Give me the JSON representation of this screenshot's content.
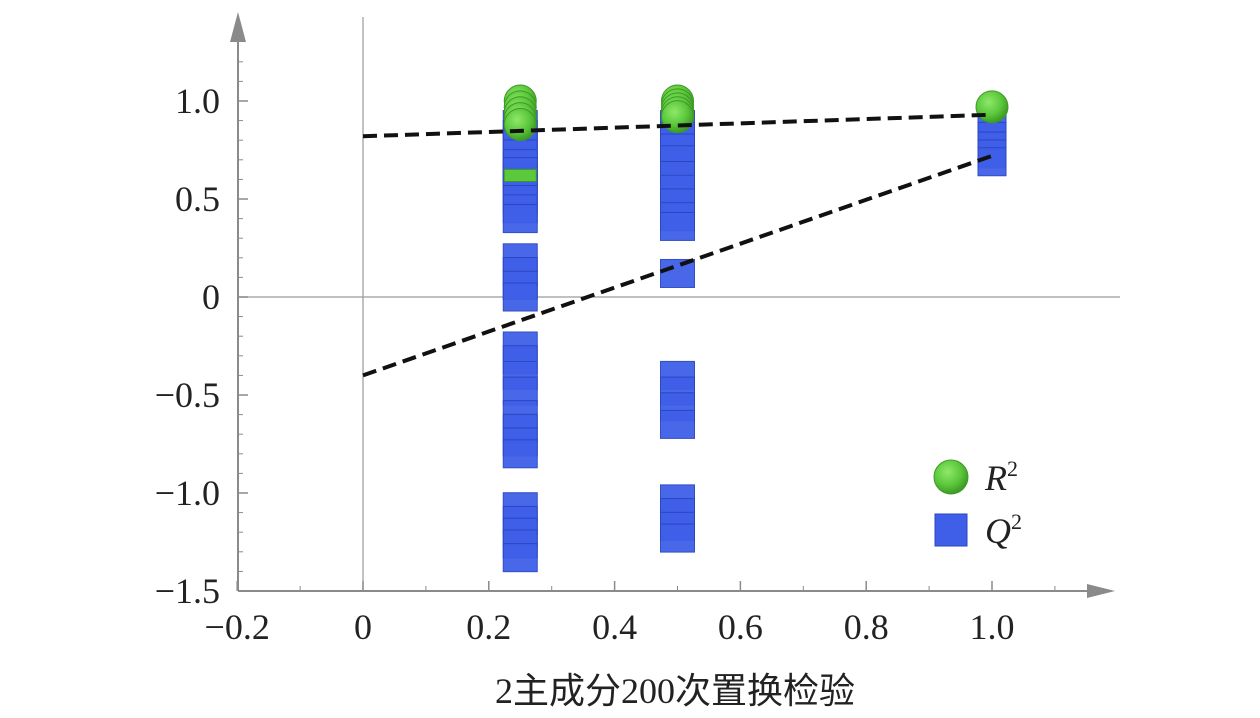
{
  "chart_data": {
    "type": "scatter",
    "title": "",
    "xlabel": "2主成分200次置换检验",
    "ylabel": "",
    "xlim": [
      -0.22,
      1.17
    ],
    "ylim": [
      -1.5,
      1.35
    ],
    "x_ticks": [
      {
        "value": -0.2,
        "label": "−0.2"
      },
      {
        "value": 0,
        "label": "0"
      },
      {
        "value": 0.2,
        "label": "0.2"
      },
      {
        "value": 0.4,
        "label": "0.4"
      },
      {
        "value": 0.6,
        "label": "0.6"
      },
      {
        "value": 0.8,
        "label": "0.8"
      },
      {
        "value": 1.0,
        "label": "1.0"
      }
    ],
    "y_ticks": [
      {
        "value": 1.0,
        "label": "1.0"
      },
      {
        "value": 0.5,
        "label": "0.5"
      },
      {
        "value": 0,
        "label": "0"
      },
      {
        "value": -0.5,
        "label": "−0.5"
      },
      {
        "value": -1.0,
        "label": "−1.0"
      },
      {
        "value": -1.5,
        "label": "−1.5"
      }
    ],
    "grid": false,
    "legend_position": "bottom-right",
    "series": [
      {
        "name": "R",
        "name_sup": "2",
        "marker": "circle",
        "color": "#5cc83c",
        "x": [
          0.25,
          0.25,
          0.25,
          0.25,
          0.25,
          0.25,
          0.5,
          0.5,
          0.5,
          0.5,
          0.5,
          1.0
        ],
        "y": [
          1.0,
          0.97,
          0.94,
          0.91,
          0.88,
          0.62,
          1.0,
          0.98,
          0.96,
          0.94,
          0.92,
          0.97
        ]
      },
      {
        "name": "Q",
        "name_sup": "2",
        "marker": "square",
        "color": "#3f5fe8",
        "x": [
          0.25,
          0.25,
          0.25,
          0.25,
          0.25,
          0.25,
          0.25,
          0.25,
          0.25,
          0.25,
          0.25,
          0.25,
          0.25,
          0.25,
          0.25,
          0.25,
          0.25,
          0.25,
          0.25,
          0.25,
          0.25,
          0.25,
          0.25,
          0.25,
          0.25,
          0.25,
          0.25,
          0.25,
          0.5,
          0.5,
          0.5,
          0.5,
          0.5,
          0.5,
          0.5,
          0.5,
          0.5,
          0.5,
          0.5,
          0.5,
          0.5,
          0.5,
          0.5,
          0.5,
          0.5,
          0.5,
          1.0,
          1.0,
          1.0,
          1.0,
          1.0
        ],
        "y": [
          0.88,
          0.83,
          0.78,
          0.73,
          0.68,
          0.6,
          0.55,
          0.5,
          0.45,
          0.4,
          0.2,
          0.13,
          0.06,
          0.0,
          -0.25,
          -0.32,
          -0.4,
          -0.48,
          -0.6,
          -0.67,
          -0.74,
          -0.8,
          -1.07,
          -1.14,
          -1.2,
          -1.26,
          -1.33,
          0.64,
          0.88,
          0.82,
          0.76,
          0.7,
          0.62,
          0.55,
          0.48,
          0.41,
          0.36,
          0.12,
          -0.4,
          -0.48,
          -0.56,
          -0.65,
          -1.03,
          -1.1,
          -1.17,
          -1.23,
          0.87,
          0.82,
          0.77,
          0.73,
          0.69
        ]
      }
    ],
    "trend_lines": [
      {
        "series": "R",
        "x": [
          0,
          1.0
        ],
        "y": [
          0.82,
          0.93
        ]
      },
      {
        "series": "Q",
        "x": [
          0,
          1.0
        ],
        "y": [
          -0.4,
          0.72
        ]
      }
    ]
  },
  "legend": {
    "r2_main": "R",
    "r2_sup": "2",
    "q2_main": "Q",
    "q2_sup": "2"
  }
}
